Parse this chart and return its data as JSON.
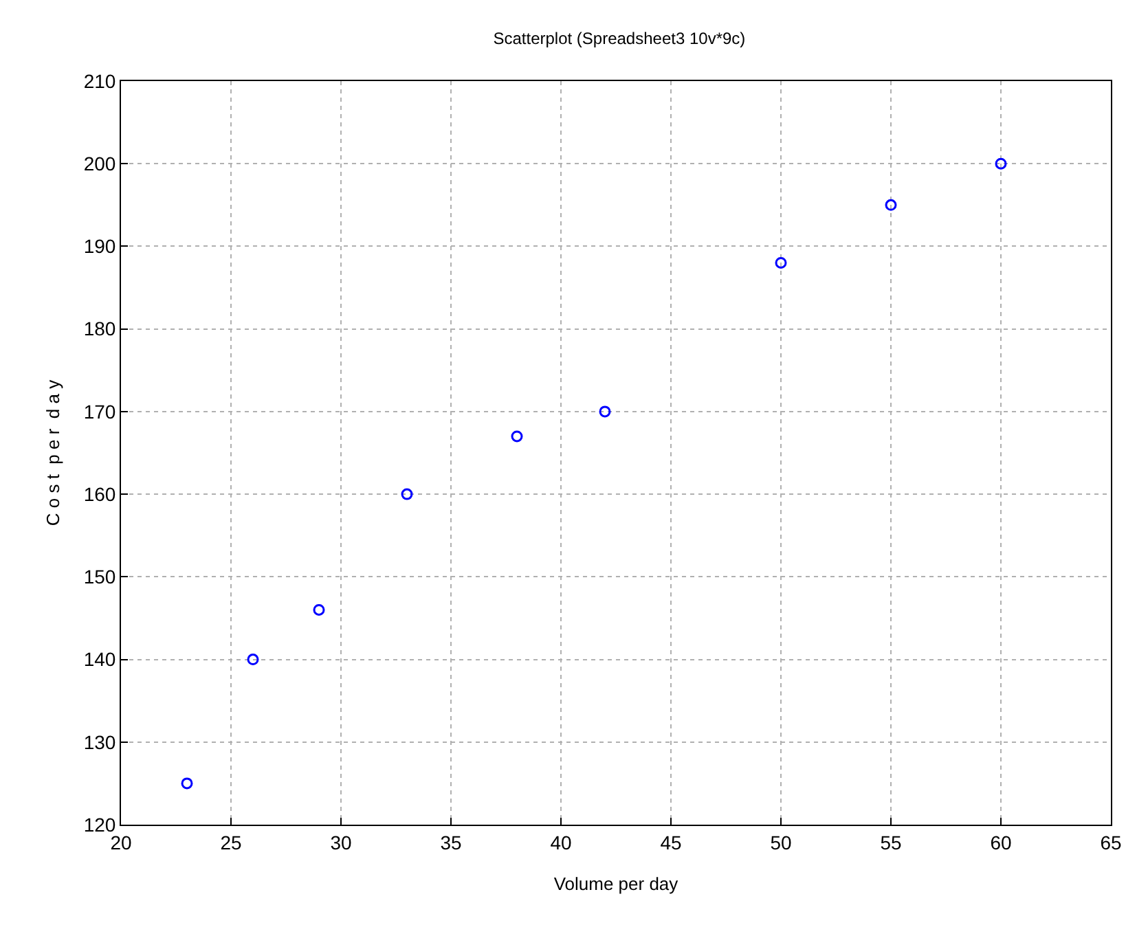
{
  "chart_data": {
    "type": "scatter",
    "title": "Scatterplot (Spreadsheet3 10v*9c)",
    "xlabel": "Volume per day",
    "ylabel": "C o s t  p e r  d a y",
    "x": [
      23,
      26,
      29,
      33,
      38,
      42,
      50,
      55,
      60
    ],
    "series": [
      {
        "color": "#0000ff",
        "values": [
          125,
          140,
          146,
          160,
          167,
          170,
          188,
          195,
          200
        ]
      }
    ],
    "xlim": [
      20,
      65
    ],
    "xticks": [
      20,
      25,
      30,
      35,
      40,
      45,
      50,
      55,
      60,
      65
    ],
    "ylim": [
      120,
      210
    ],
    "yticks": [
      120,
      130,
      140,
      150,
      160,
      170,
      180,
      190,
      200,
      210
    ],
    "grid": true,
    "marker": "circle"
  }
}
